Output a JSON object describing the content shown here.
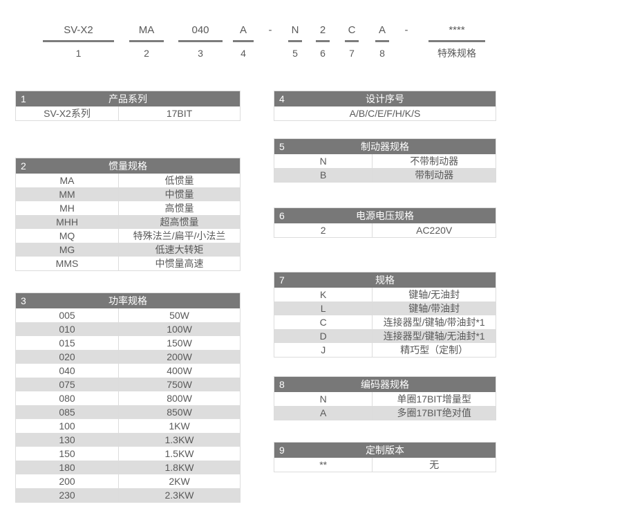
{
  "colors": {
    "header_bg": "#787878",
    "header_text": "#ffffff",
    "row_alt_bg": "#dddddd",
    "text": "#595959",
    "border": "#dcdcdc",
    "underline": "#7c7c7c"
  },
  "model_code": {
    "segments": [
      {
        "value": "SV-X2",
        "num": "1",
        "type": "field"
      },
      {
        "value": "MA",
        "num": "2",
        "type": "field"
      },
      {
        "value": "040",
        "num": "3",
        "type": "field"
      },
      {
        "value": "A",
        "num": "4",
        "type": "field"
      },
      {
        "value": "-",
        "num": "",
        "type": "separator"
      },
      {
        "value": "N",
        "num": "5",
        "type": "field"
      },
      {
        "value": "2",
        "num": "6",
        "type": "field"
      },
      {
        "value": "C",
        "num": "7",
        "type": "field"
      },
      {
        "value": "A",
        "num": "8",
        "type": "field"
      },
      {
        "value": "-",
        "num": "",
        "type": "separator"
      },
      {
        "value": "****",
        "num": "特殊规格",
        "type": "field"
      }
    ]
  },
  "columns": {
    "left": [
      {
        "id": "1",
        "title": "产品系列",
        "rows": [
          [
            "SV-X2系列",
            "17BIT"
          ]
        ]
      },
      {
        "id": "2",
        "title": "惯量规格",
        "rows": [
          [
            "MA",
            "低惯量"
          ],
          [
            "MM",
            "中惯量"
          ],
          [
            "MH",
            "高惯量"
          ],
          [
            "MHH",
            "超高惯量"
          ],
          [
            "MQ",
            "特殊法兰/扁平/小法兰"
          ],
          [
            "MG",
            "低速大转矩"
          ],
          [
            "MMS",
            "中惯量高速"
          ]
        ]
      },
      {
        "id": "3",
        "title": "功率规格",
        "rows": [
          [
            "005",
            "50W"
          ],
          [
            "010",
            "100W"
          ],
          [
            "015",
            "150W"
          ],
          [
            "020",
            "200W"
          ],
          [
            "040",
            "400W"
          ],
          [
            "075",
            "750W"
          ],
          [
            "080",
            "800W"
          ],
          [
            "085",
            "850W"
          ],
          [
            "100",
            "1KW"
          ],
          [
            "130",
            "1.3KW"
          ],
          [
            "150",
            "1.5KW"
          ],
          [
            "180",
            "1.8KW"
          ],
          [
            "200",
            "2KW"
          ],
          [
            "230",
            "2.3KW"
          ]
        ]
      }
    ],
    "right": [
      {
        "id": "4",
        "title": "设计序号",
        "rows": [
          [
            "A/B/C/E/F/H/K/S"
          ]
        ]
      },
      {
        "id": "5",
        "title": "制动器规格",
        "rows": [
          [
            "N",
            "不带制动器"
          ],
          [
            "B",
            "带制动器"
          ]
        ]
      },
      {
        "id": "6",
        "title": "电源电压规格",
        "rows": [
          [
            "2",
            "AC220V"
          ]
        ]
      },
      {
        "id": "7",
        "title": "规格",
        "rows": [
          [
            "K",
            "键轴/无油封"
          ],
          [
            "L",
            "键轴/带油封"
          ],
          [
            "C",
            "连接器型/键轴/带油封*1"
          ],
          [
            "D",
            "连接器型/键轴/无油封*1"
          ],
          [
            "J",
            "精巧型（定制）"
          ]
        ]
      },
      {
        "id": "8",
        "title": "编码器规格",
        "rows": [
          [
            "N",
            "单圈17BIT增量型"
          ],
          [
            "A",
            "多圈17BIT绝对值"
          ]
        ]
      },
      {
        "id": "9",
        "title": "定制版本",
        "rows": [
          [
            "**",
            "无"
          ]
        ]
      }
    ]
  }
}
